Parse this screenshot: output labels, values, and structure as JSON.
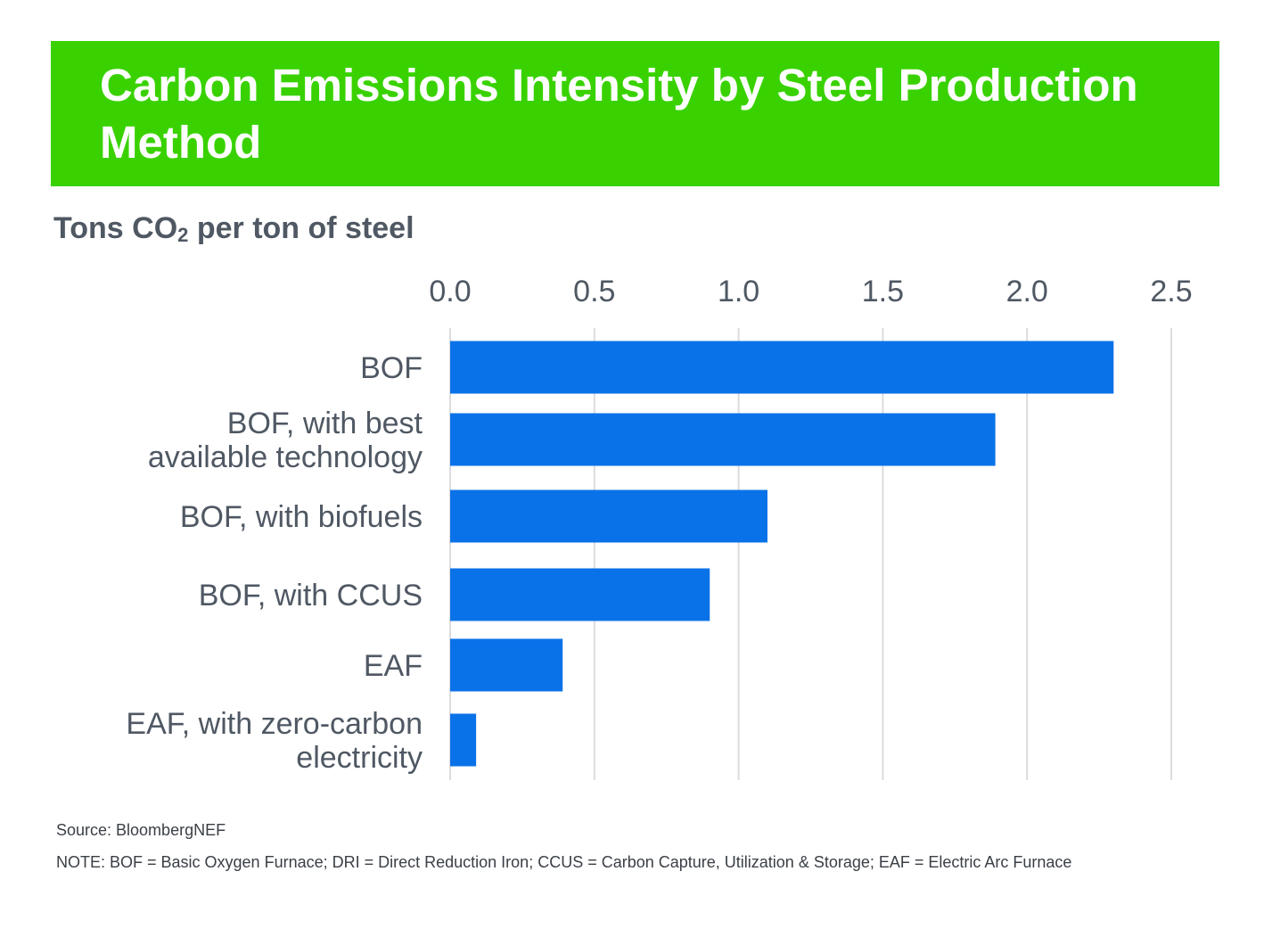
{
  "header": {
    "title": "Carbon Emissions Intensity by Steel Production Method"
  },
  "subtitle": {
    "prefix": "Tons CO",
    "subscript": "2",
    "suffix": " per ton of steel"
  },
  "colors": {
    "banner": "#39d200",
    "bar": "#0a72e8",
    "grid": "#dcdcdc",
    "text": "#4f5863"
  },
  "chart_data": {
    "type": "bar",
    "orientation": "horizontal",
    "categories": [
      [
        "BOF"
      ],
      [
        "BOF, with best",
        "available technology"
      ],
      [
        "BOF, with biofuels"
      ],
      [
        "BOF, with CCUS"
      ],
      [
        "EAF"
      ],
      [
        "EAF, with zero-carbon",
        "electricity"
      ]
    ],
    "values": [
      2.3,
      1.89,
      1.1,
      0.9,
      0.39,
      0.09
    ],
    "xlim": [
      0,
      2.5
    ],
    "ticks": [
      "0.0",
      "0.5",
      "1.0",
      "1.5",
      "2.0",
      "2.5"
    ],
    "tick_values": [
      0,
      0.5,
      1.0,
      1.5,
      2.0,
      2.5
    ],
    "axis_position": "top",
    "grid": true
  },
  "footer": {
    "source": "Source: BloombergNEF",
    "note": "NOTE: BOF = Basic Oxygen Furnace; DRI = Direct Reduction Iron; CCUS = Carbon Capture, Utilization & Storage; EAF = Electric Arc Furnace"
  }
}
